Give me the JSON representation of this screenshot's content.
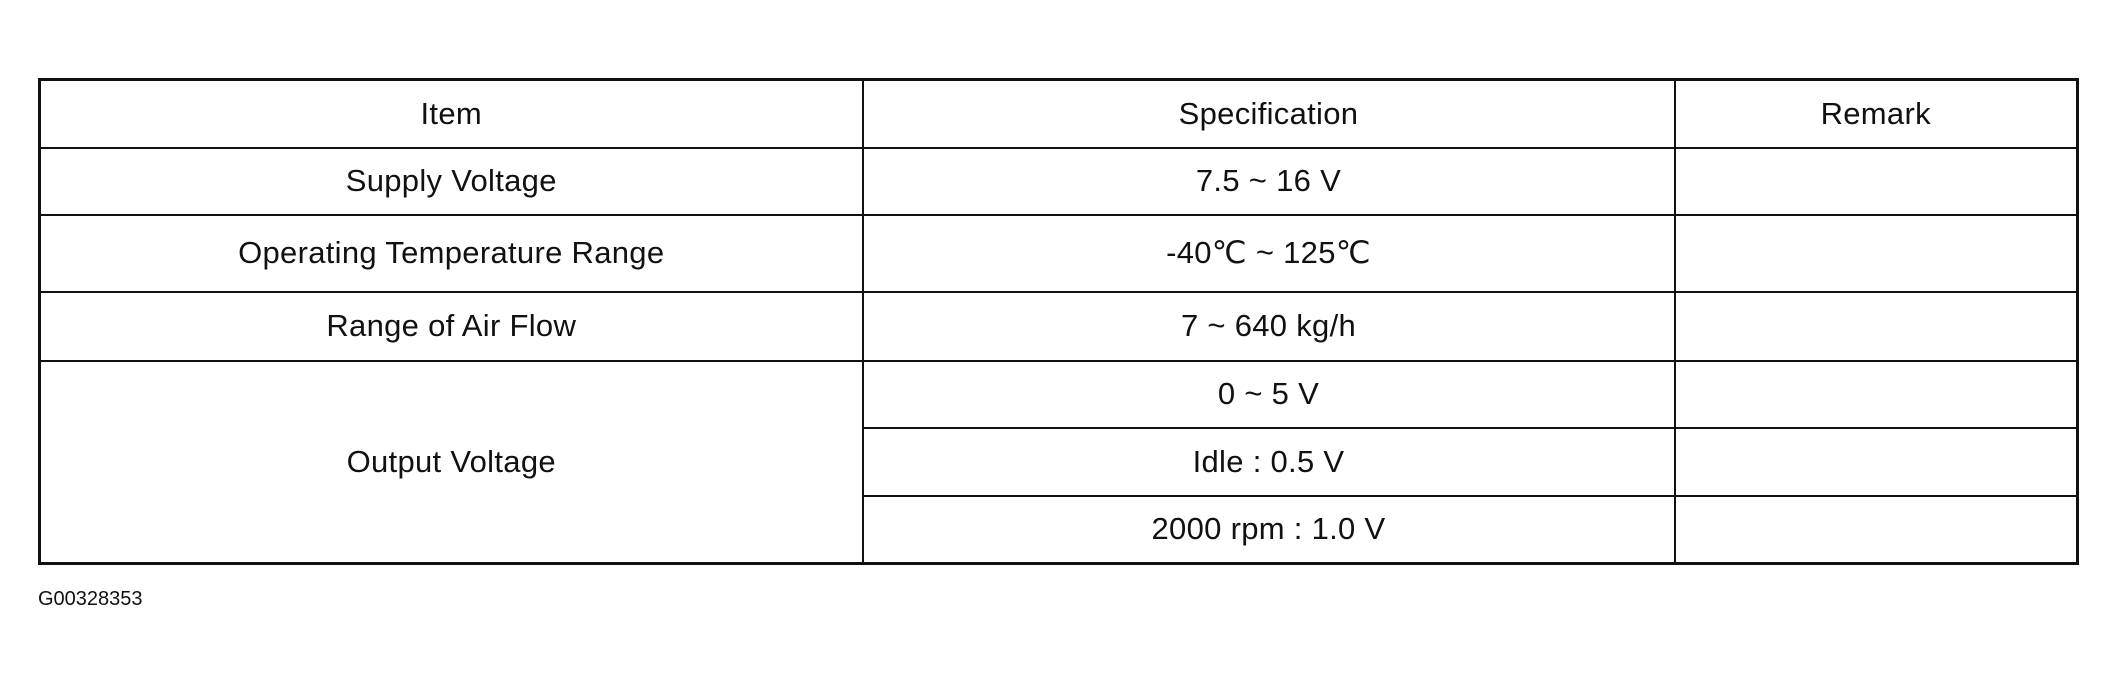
{
  "table": {
    "headers": [
      "Item",
      "Specification",
      "Remark"
    ],
    "rows": [
      {
        "item": "Supply Voltage",
        "spec": "7.5 ~ 16 V",
        "remark": ""
      },
      {
        "item": "Operating Temperature Range",
        "spec": "-40℃ ~ 125℃",
        "remark": ""
      },
      {
        "item": "Range of Air Flow",
        "spec": "7 ~ 640 kg/h",
        "remark": ""
      },
      {
        "item": "Output Voltage",
        "specs": [
          "0 ~ 5 V",
          "Idle : 0.5 V",
          "2000 rpm : 1.0 V"
        ],
        "remarks": [
          "",
          "",
          ""
        ]
      }
    ]
  },
  "figure_code": "G00328353"
}
